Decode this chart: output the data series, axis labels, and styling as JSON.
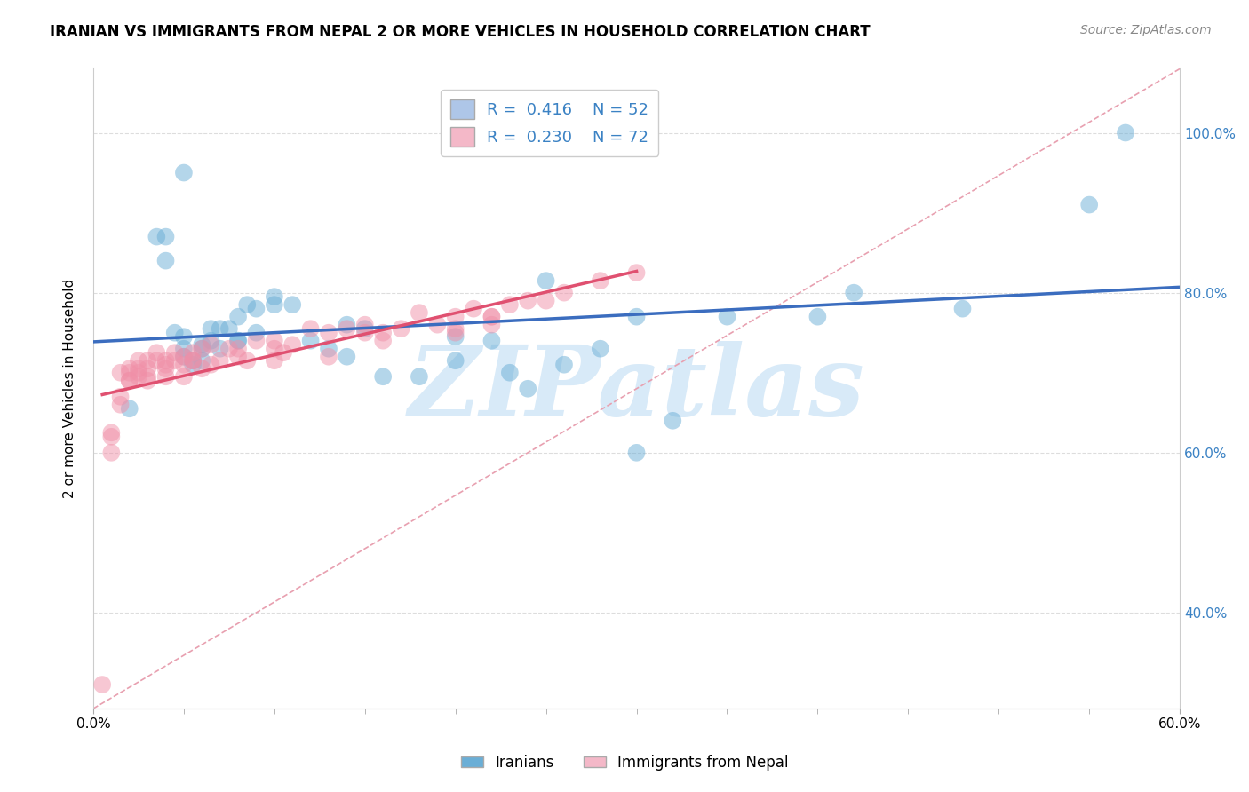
{
  "title": "IRANIAN VS IMMIGRANTS FROM NEPAL 2 OR MORE VEHICLES IN HOUSEHOLD CORRELATION CHART",
  "source": "Source: ZipAtlas.com",
  "ylabel": "2 or more Vehicles in Household",
  "xmin": 0.0,
  "xmax": 0.6,
  "ymin": 0.28,
  "ymax": 1.08,
  "x_tick_major": [
    0.0,
    0.6
  ],
  "x_tick_major_labels": [
    "0.0%",
    "60.0%"
  ],
  "x_tick_minor": [
    0.05,
    0.1,
    0.15,
    0.2,
    0.25,
    0.3,
    0.35,
    0.4,
    0.45,
    0.5,
    0.55
  ],
  "y_ticks": [
    0.4,
    0.6,
    0.8,
    1.0
  ],
  "y_tick_labels": [
    "40.0%",
    "60.0%",
    "80.0%",
    "100.0%"
  ],
  "legend_label1": "R =  0.416    N = 52",
  "legend_label2": "R =  0.230    N = 72",
  "legend_color1": "#aec6e8",
  "legend_color2": "#f4b8c8",
  "iranians_color": "#6aaed6",
  "nepal_color": "#f090a8",
  "trend_line_iranians_color": "#3b6dbf",
  "trend_line_nepal_color": "#e05070",
  "diagonal_color": "#e8a0b0",
  "watermark": "ZIPatlas",
  "watermark_color": "#d8eaf8",
  "iranians_x": [
    0.02,
    0.05,
    0.035,
    0.04,
    0.04,
    0.045,
    0.05,
    0.05,
    0.05,
    0.055,
    0.055,
    0.06,
    0.06,
    0.06,
    0.065,
    0.065,
    0.07,
    0.07,
    0.075,
    0.08,
    0.08,
    0.08,
    0.085,
    0.09,
    0.09,
    0.1,
    0.1,
    0.11,
    0.12,
    0.13,
    0.14,
    0.14,
    0.15,
    0.16,
    0.18,
    0.2,
    0.2,
    0.22,
    0.23,
    0.24,
    0.25,
    0.26,
    0.28,
    0.3,
    0.3,
    0.32,
    0.35,
    0.4,
    0.42,
    0.48,
    0.55,
    0.57
  ],
  "iranians_y": [
    0.655,
    0.95,
    0.87,
    0.87,
    0.84,
    0.75,
    0.745,
    0.73,
    0.72,
    0.715,
    0.71,
    0.73,
    0.735,
    0.715,
    0.74,
    0.755,
    0.755,
    0.73,
    0.755,
    0.74,
    0.74,
    0.77,
    0.785,
    0.75,
    0.78,
    0.785,
    0.795,
    0.785,
    0.74,
    0.73,
    0.76,
    0.72,
    0.755,
    0.695,
    0.695,
    0.745,
    0.715,
    0.74,
    0.7,
    0.68,
    0.815,
    0.71,
    0.73,
    0.6,
    0.77,
    0.64,
    0.77,
    0.77,
    0.8,
    0.78,
    0.91,
    1.0
  ],
  "nepal_x": [
    0.005,
    0.01,
    0.01,
    0.01,
    0.015,
    0.015,
    0.015,
    0.02,
    0.02,
    0.02,
    0.02,
    0.025,
    0.025,
    0.025,
    0.025,
    0.03,
    0.03,
    0.03,
    0.03,
    0.035,
    0.035,
    0.04,
    0.04,
    0.04,
    0.04,
    0.045,
    0.045,
    0.05,
    0.05,
    0.05,
    0.055,
    0.055,
    0.055,
    0.06,
    0.06,
    0.065,
    0.065,
    0.07,
    0.075,
    0.08,
    0.08,
    0.085,
    0.09,
    0.1,
    0.1,
    0.1,
    0.105,
    0.11,
    0.12,
    0.13,
    0.13,
    0.14,
    0.15,
    0.15,
    0.16,
    0.16,
    0.17,
    0.18,
    0.19,
    0.2,
    0.2,
    0.2,
    0.21,
    0.22,
    0.22,
    0.22,
    0.23,
    0.24,
    0.25,
    0.26,
    0.28,
    0.3
  ],
  "nepal_y": [
    0.31,
    0.625,
    0.62,
    0.6,
    0.7,
    0.67,
    0.66,
    0.705,
    0.69,
    0.7,
    0.69,
    0.715,
    0.705,
    0.7,
    0.695,
    0.715,
    0.705,
    0.695,
    0.69,
    0.725,
    0.715,
    0.715,
    0.71,
    0.705,
    0.695,
    0.725,
    0.715,
    0.72,
    0.71,
    0.695,
    0.715,
    0.725,
    0.715,
    0.73,
    0.705,
    0.735,
    0.71,
    0.715,
    0.73,
    0.73,
    0.72,
    0.715,
    0.74,
    0.74,
    0.73,
    0.715,
    0.725,
    0.735,
    0.755,
    0.75,
    0.72,
    0.755,
    0.76,
    0.75,
    0.75,
    0.74,
    0.755,
    0.775,
    0.76,
    0.75,
    0.77,
    0.755,
    0.78,
    0.77,
    0.76,
    0.77,
    0.785,
    0.79,
    0.79,
    0.8,
    0.815,
    0.825
  ],
  "background_color": "#ffffff",
  "grid_color": "#dddddd"
}
